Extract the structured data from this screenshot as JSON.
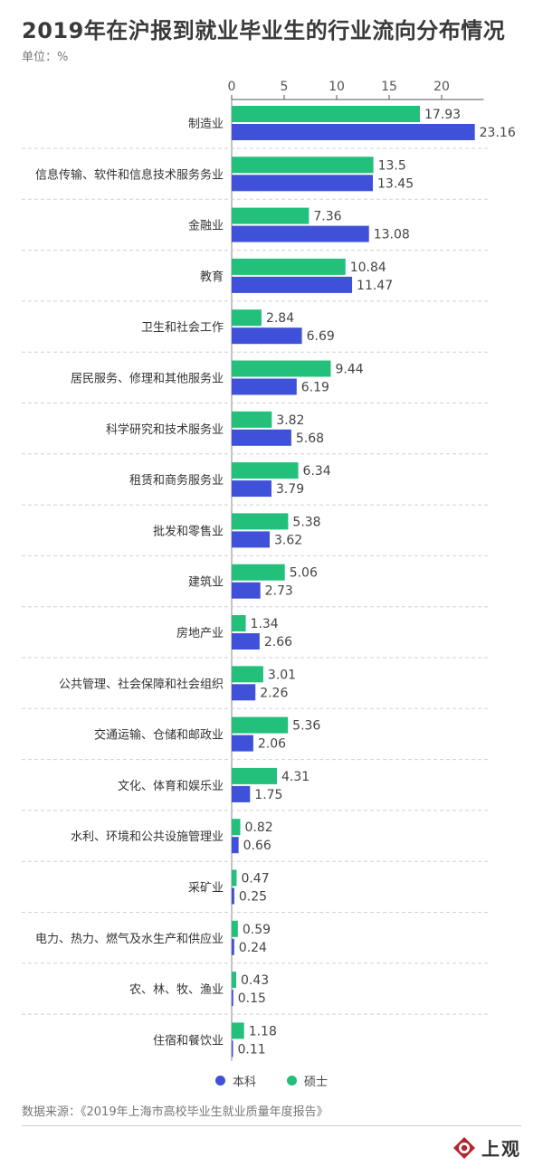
{
  "title": "2019年在沪报到就业毕业生的行业流向分布情况",
  "unit": "单位：%",
  "source": "数据来源：《2019年上海市高校毕业生就业质量年度报告》",
  "logo_text": "上观",
  "colors": {
    "benke": "#3f51d8",
    "shuoshi": "#22c07a",
    "axis": "#555555",
    "grid": "#d0d0d0"
  },
  "legend": [
    {
      "label": "本科",
      "color": "#3f51d8"
    },
    {
      "label": "硕士",
      "color": "#22c07a"
    }
  ],
  "chart_data": {
    "type": "bar",
    "orientation": "horizontal",
    "xlim": [
      0,
      24
    ],
    "ticks": [
      0,
      5,
      10,
      15,
      20
    ],
    "categories": [
      "制造业",
      "信息传输、软件和信息技术服务务业",
      "金融业",
      "教育",
      "卫生和社会工作",
      "居民服务、修理和其他服务业",
      "科学研究和技术服务业",
      "租赁和商务服务业",
      "批发和零售业",
      "建筑业",
      "房地产业",
      "公共管理、社会保障和社会组织",
      "交通运输、仓储和邮政业",
      "文化、体育和娱乐业",
      "水利、环境和公共设施管理业",
      "采矿业",
      "电力、热力、燃气及水生产和供应业",
      "农、林、牧、渔业",
      "住宿和餐饮业"
    ],
    "series": [
      {
        "name": "硕士",
        "values": [
          17.93,
          13.5,
          7.36,
          10.84,
          2.84,
          9.44,
          3.82,
          6.34,
          5.38,
          5.06,
          1.34,
          3.01,
          5.36,
          4.31,
          0.82,
          0.47,
          0.59,
          0.43,
          1.18
        ]
      },
      {
        "name": "本科",
        "values": [
          23.16,
          13.45,
          13.08,
          11.47,
          6.69,
          6.19,
          5.68,
          3.79,
          3.62,
          2.73,
          2.66,
          2.26,
          2.06,
          1.75,
          0.66,
          0.25,
          0.24,
          0.15,
          0.11
        ]
      }
    ],
    "legend_position": "bottom",
    "grid": false
  }
}
